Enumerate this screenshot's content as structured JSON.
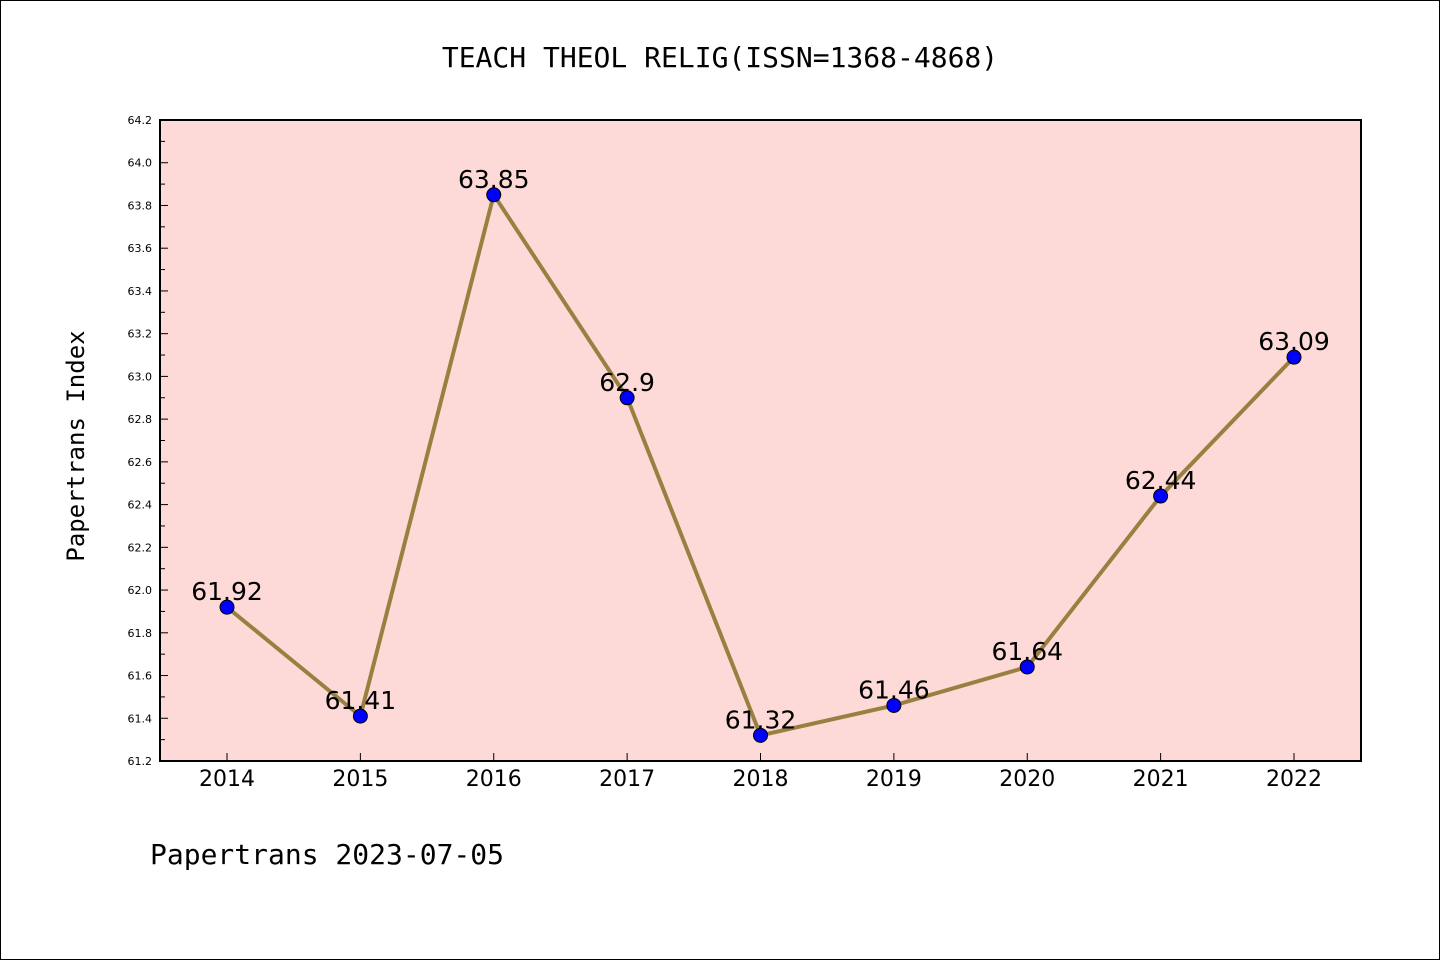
{
  "chart_data": {
    "type": "line",
    "title": "TEACH THEOL RELIG(ISSN=1368-4868)",
    "ylabel": "Papertrans Index",
    "xlabel": "",
    "categories": [
      "2014",
      "2015",
      "2016",
      "2017",
      "2018",
      "2019",
      "2020",
      "2021",
      "2022"
    ],
    "series": [
      {
        "values": [
          61.92,
          61.41,
          63.85,
          62.9,
          61.32,
          61.46,
          61.64,
          62.44,
          63.09
        ],
        "labels": [
          "61.92",
          "61.41",
          "63.85",
          "62.9",
          "61.32",
          "61.46",
          "61.64",
          "62.44",
          "63.09"
        ]
      }
    ],
    "ylim": [
      61.2,
      64.2
    ],
    "yticks": [
      "61.2",
      "61.4",
      "61.6",
      "61.8",
      "62.0",
      "62.2",
      "62.4",
      "62.6",
      "62.8",
      "63.0",
      "63.2",
      "63.4",
      "63.6",
      "63.8",
      "64.0",
      "64.2"
    ],
    "grid": false,
    "colors": {
      "plot_background": "#fddad8",
      "line": "#9a8040",
      "marker": "#0000ff"
    }
  },
  "footer": "Papertrans 2023-07-05"
}
